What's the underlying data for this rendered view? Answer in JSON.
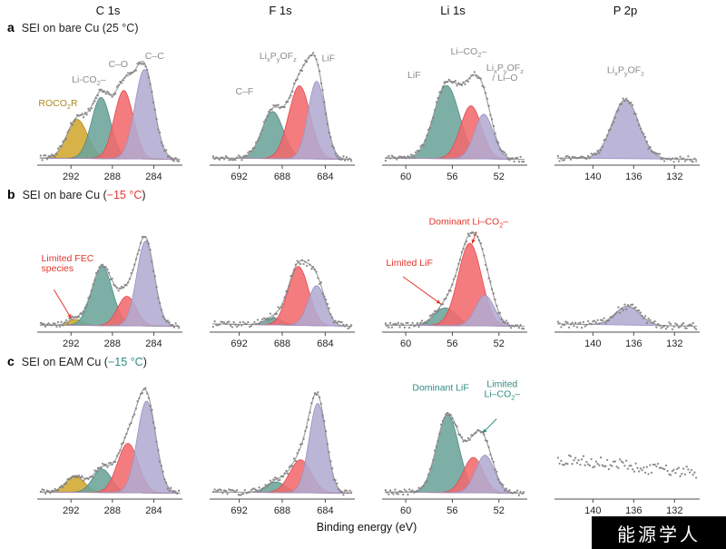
{
  "figure": {
    "columns": [
      "C 1s",
      "F 1s",
      "Li 1s",
      "P 2p"
    ],
    "xlabel": "Binding energy (eV)",
    "watermark": "能源学人",
    "rows": [
      {
        "id": "a",
        "title_prefix": "SEI on bare Cu (",
        "temp": "25 °C",
        "temp_color": "#262626",
        "title_suffix": ")"
      },
      {
        "id": "b",
        "title_prefix": "SEI on bare Cu (",
        "temp": "−15 °C",
        "temp_color": "#e2372e",
        "title_suffix": ")"
      },
      {
        "id": "c",
        "title_prefix": "SEI on EAM Cu (",
        "temp": "−15 °C",
        "temp_color": "#2f8c82",
        "title_suffix": ")"
      }
    ],
    "colors": {
      "peak": {
        "gold": {
          "fill": "#d2a730",
          "stroke": "#b18b22"
        },
        "teal": {
          "fill": "#6ba49b",
          "stroke": "#4e8c84"
        },
        "red": {
          "fill": "#f26a6d",
          "stroke": "#e2484e"
        },
        "purple": {
          "fill": "#b2abd1",
          "stroke": "#9c92c4"
        }
      },
      "envelope": "#9b9b9b",
      "scatter": "#7f7f7f",
      "axis": "#4d4d4d",
      "tick_text": "#262626",
      "label_gray": "#8c8c8c",
      "label_red": "#e2372e",
      "label_teal": "#2f8c82",
      "label_gold": "#ab8a20"
    }
  },
  "chart_data": [
    {
      "id": "a-c1s",
      "row": "a",
      "col": "C 1s",
      "type": "area",
      "x_range": [
        295.0,
        281.5
      ],
      "ticks": [
        292,
        288,
        284
      ],
      "baseline": [
        0.06,
        0.05
      ],
      "noise": 0.022,
      "peaks": [
        {
          "label": "ROCO2R",
          "c": 291.4,
          "s": 1.0,
          "h": 0.33,
          "color": "gold"
        },
        {
          "label": "Li-CO2-",
          "c": 289.1,
          "s": 0.92,
          "h": 0.52,
          "color": "teal"
        },
        {
          "label": "C-O",
          "c": 286.9,
          "s": 0.92,
          "h": 0.58,
          "color": "red"
        },
        {
          "label": "C-C",
          "c": 284.9,
          "s": 0.92,
          "h": 0.76,
          "color": "purple"
        }
      ],
      "annotations": [
        {
          "text": "C–C",
          "color": "label_gray",
          "fx": 0.82,
          "fy": 0.1
        },
        {
          "text": "C–O",
          "color": "label_gray",
          "fx": 0.56,
          "fy": 0.17
        },
        {
          "text": "Li-CO{2}–",
          "color": "label_gray",
          "fx": 0.35,
          "fy": 0.3
        },
        {
          "text": "ROCO{2}R",
          "color": "label_gold",
          "fx": 0.13,
          "fy": 0.5
        }
      ]
    },
    {
      "id": "a-f1s",
      "row": "a",
      "col": "F 1s",
      "type": "area",
      "x_range": [
        694.5,
        681.5
      ],
      "ticks": [
        692,
        688,
        684
      ],
      "baseline": [
        0.06,
        0.05
      ],
      "noise": 0.022,
      "peaks": [
        {
          "label": "C-F",
          "c": 688.9,
          "s": 1.0,
          "h": 0.4,
          "color": "teal"
        },
        {
          "label": "LixPyOFz",
          "c": 686.4,
          "s": 1.0,
          "h": 0.62,
          "color": "red"
        },
        {
          "label": "LiF",
          "c": 684.8,
          "s": 0.8,
          "h": 0.66,
          "color": "purple"
        }
      ],
      "annotations": [
        {
          "text": "Li{x}P{y}OF{z}",
          "color": "label_gray",
          "fx": 0.47,
          "fy": 0.1
        },
        {
          "text": "LiF",
          "color": "label_gray",
          "fx": 0.83,
          "fy": 0.12
        },
        {
          "text": "C–F",
          "color": "label_gray",
          "fx": 0.23,
          "fy": 0.4
        }
      ]
    },
    {
      "id": "a-li1s",
      "row": "a",
      "col": "Li 1s",
      "type": "area",
      "x_range": [
        61.8,
        49.8
      ],
      "ticks": [
        60,
        56,
        52
      ],
      "baseline": [
        0.06,
        0.05
      ],
      "noise": 0.022,
      "peaks": [
        {
          "label": "LiF",
          "c": 56.5,
          "s": 1.1,
          "h": 0.62,
          "color": "teal"
        },
        {
          "label": "Li-CO2-",
          "c": 54.4,
          "s": 0.9,
          "h": 0.45,
          "color": "red"
        },
        {
          "label": "LixPyOFz / Li-O",
          "c": 53.3,
          "s": 0.8,
          "h": 0.38,
          "color": "purple"
        }
      ],
      "annotations": [
        {
          "text": "Li–CO{2}–",
          "color": "label_gray",
          "fx": 0.6,
          "fy": 0.06
        },
        {
          "text": "LiF",
          "color": "label_gray",
          "fx": 0.21,
          "fy": 0.26
        },
        {
          "text": "Li{x}P{y}OF{z}\n/ Li–O",
          "color": "label_gray",
          "fx": 0.86,
          "fy": 0.2
        }
      ]
    },
    {
      "id": "a-p2p",
      "row": "a",
      "col": "P 2p",
      "type": "area",
      "x_range": [
        143.5,
        129.8
      ],
      "ticks": [
        140,
        136,
        132
      ],
      "baseline": [
        0.06,
        0.05
      ],
      "noise": 0.025,
      "peaks": [
        {
          "label": "LixPyOFz",
          "c": 136.8,
          "s": 1.3,
          "h": 0.5,
          "color": "purple"
        }
      ],
      "annotations": [
        {
          "text": "Li{x}P{y}OF{z}",
          "color": "label_gray",
          "fx": 0.49,
          "fy": 0.22
        }
      ]
    },
    {
      "id": "b-c1s",
      "row": "b",
      "col": "C 1s",
      "type": "area",
      "x_range": [
        295.0,
        281.5
      ],
      "ticks": [
        292,
        288,
        284
      ],
      "baseline": [
        0.06,
        0.05
      ],
      "noise": 0.022,
      "peaks": [
        {
          "label": "FEC species (limited)",
          "c": 291.6,
          "s": 0.7,
          "h": 0.05,
          "color": "gold"
        },
        {
          "label": "Li-CO2-",
          "c": 289.0,
          "s": 1.0,
          "h": 0.5,
          "color": "teal"
        },
        {
          "label": "C-O",
          "c": 286.6,
          "s": 0.9,
          "h": 0.25,
          "color": "red"
        },
        {
          "label": "C-C",
          "c": 284.8,
          "s": 0.85,
          "h": 0.72,
          "color": "purple"
        }
      ],
      "annotations": [
        {
          "text": "Limited FEC\nspecies",
          "color": "label_red",
          "fx": 0.01,
          "fy": 0.4,
          "anchor": "start",
          "arrow": [
            0.1,
            0.64,
            0.225,
            0.885
          ]
        }
      ]
    },
    {
      "id": "b-f1s",
      "row": "b",
      "col": "F 1s",
      "type": "area",
      "x_range": [
        694.5,
        681.5
      ],
      "ticks": [
        692,
        688,
        684
      ],
      "baseline": [
        0.07,
        0.05
      ],
      "noise": 0.03,
      "peaks": [
        {
          "label": "C-F",
          "c": 688.8,
          "s": 0.8,
          "h": 0.06,
          "color": "teal"
        },
        {
          "label": "LixPyOFz",
          "c": 686.5,
          "s": 0.95,
          "h": 0.5,
          "color": "red"
        },
        {
          "label": "LiF",
          "c": 684.8,
          "s": 0.8,
          "h": 0.34,
          "color": "purple"
        }
      ],
      "annotations": []
    },
    {
      "id": "b-li1s",
      "row": "b",
      "col": "Li 1s",
      "type": "area",
      "x_range": [
        61.8,
        49.8
      ],
      "ticks": [
        60,
        56,
        52
      ],
      "baseline": [
        0.06,
        0.05
      ],
      "noise": 0.022,
      "peaks": [
        {
          "label": "LiF (limited)",
          "c": 56.6,
          "s": 0.95,
          "h": 0.15,
          "color": "teal"
        },
        {
          "label": "Li-CO2- (dominant)",
          "c": 54.5,
          "s": 1.0,
          "h": 0.7,
          "color": "red"
        },
        {
          "label": "LixPyOFz",
          "c": 53.2,
          "s": 0.8,
          "h": 0.26,
          "color": "purple"
        }
      ],
      "annotations": [
        {
          "text": "Dominant Li–CO{2}–",
          "color": "label_red",
          "fx": 0.6,
          "fy": 0.09,
          "arrow": [
            0.655,
            0.15,
            0.625,
            0.25
          ]
        },
        {
          "text": "Limited LiF",
          "color": "label_red",
          "fx": 0.01,
          "fy": 0.44,
          "anchor": "start",
          "arrow": [
            0.13,
            0.53,
            0.4,
            0.76
          ]
        }
      ]
    },
    {
      "id": "b-p2p",
      "row": "b",
      "col": "P 2p",
      "type": "area",
      "x_range": [
        143.5,
        129.8
      ],
      "ticks": [
        140,
        136,
        132
      ],
      "baseline": [
        0.07,
        0.05
      ],
      "noise": 0.03,
      "peaks": [
        {
          "label": "LixPyOFz",
          "c": 136.6,
          "s": 1.2,
          "h": 0.16,
          "color": "purple"
        }
      ],
      "annotations": []
    },
    {
      "id": "c-c1s",
      "row": "c",
      "col": "C 1s",
      "type": "area",
      "x_range": [
        295.0,
        281.5
      ],
      "ticks": [
        292,
        288,
        284
      ],
      "baseline": [
        0.06,
        0.05
      ],
      "noise": 0.022,
      "peaks": [
        {
          "label": "ROCO2R",
          "c": 291.6,
          "s": 0.9,
          "h": 0.14,
          "color": "gold"
        },
        {
          "label": "Li-CO2-",
          "c": 289.0,
          "s": 0.9,
          "h": 0.2,
          "color": "teal"
        },
        {
          "label": "C-O",
          "c": 286.5,
          "s": 1.0,
          "h": 0.42,
          "color": "red"
        },
        {
          "label": "C-C",
          "c": 284.7,
          "s": 0.9,
          "h": 0.78,
          "color": "purple"
        }
      ],
      "annotations": []
    },
    {
      "id": "c-f1s",
      "row": "c",
      "col": "F 1s",
      "type": "area",
      "x_range": [
        694.5,
        681.5
      ],
      "ticks": [
        692,
        688,
        684
      ],
      "baseline": [
        0.06,
        0.05
      ],
      "noise": 0.025,
      "peaks": [
        {
          "label": "C-F",
          "c": 688.6,
          "s": 0.9,
          "h": 0.09,
          "color": "teal"
        },
        {
          "label": "LixPyOFz",
          "c": 686.3,
          "s": 1.0,
          "h": 0.28,
          "color": "red"
        },
        {
          "label": "LiF",
          "c": 684.7,
          "s": 0.8,
          "h": 0.76,
          "color": "purple"
        }
      ],
      "annotations": []
    },
    {
      "id": "c-li1s",
      "row": "c",
      "col": "Li 1s",
      "type": "area",
      "x_range": [
        61.8,
        49.8
      ],
      "ticks": [
        60,
        56,
        52
      ],
      "baseline": [
        0.06,
        0.05
      ],
      "noise": 0.022,
      "peaks": [
        {
          "label": "LiF (dominant)",
          "c": 56.4,
          "s": 0.95,
          "h": 0.66,
          "color": "teal"
        },
        {
          "label": "Li-CO2- (limited)",
          "c": 54.2,
          "s": 0.85,
          "h": 0.3,
          "color": "red"
        },
        {
          "label": "LixPyOFz",
          "c": 53.2,
          "s": 0.8,
          "h": 0.32,
          "color": "purple"
        }
      ],
      "annotations": [
        {
          "text": "Dominant LiF",
          "color": "label_teal",
          "fx": 0.4,
          "fy": 0.08
        },
        {
          "text": "Limited\nLi–CO{2}–",
          "color": "label_teal",
          "fx": 0.84,
          "fy": 0.05,
          "arrow": [
            0.8,
            0.32,
            0.7,
            0.44
          ]
        }
      ]
    },
    {
      "id": "c-p2p",
      "row": "c",
      "col": "P 2p",
      "type": "area",
      "x_range": [
        143.5,
        129.8
      ],
      "ticks": [
        140,
        136,
        132
      ],
      "baseline": [
        0.34,
        0.22
      ],
      "noise": 0.05,
      "peaks": [],
      "annotations": []
    }
  ]
}
